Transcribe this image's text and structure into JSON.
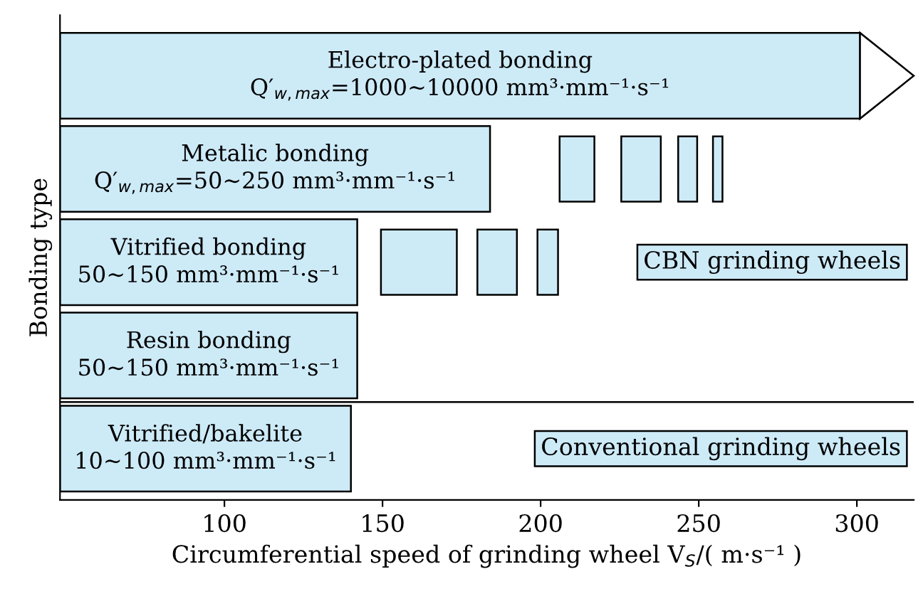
{
  "chart_data": {
    "type": "bar",
    "orientation": "horizontal",
    "ylabel": "Bonding type",
    "xlabel": "Circumferential speed of grinding wheel V$_{S}$/( m·s⁻¹ )",
    "categories": [
      null,
      null,
      null,
      null,
      null
    ],
    "xlim": [
      48,
      318
    ],
    "xticks": [
      100,
      150,
      200,
      250,
      300
    ],
    "tick_labels": "x",
    "grid": false,
    "series": [
      {
        "color": "#cdeaf7",
        "base": [
          48,
          48,
          48,
          48,
          48
        ],
        "values": [
          253,
          136,
          94,
          94,
          92
        ],
        "value_labels": [
          "Electro-plated bonding\nQ′$_{w,max}$=1000~10000 mm³·mm⁻¹·s⁻¹",
          "Metalic bonding\nQ′$_{w,max}$=50~250 mm³·mm⁻¹·s⁻¹",
          "Vitrified bonding\n50~150 mm³·mm⁻¹·s⁻¹",
          "Resin bonding\n50~150 mm³·mm⁻¹·s⁻¹",
          "Vitrified/bakelite\n10~100 mm³·mm⁻¹·s⁻¹"
        ]
      },
      {
        "color": "#cdeaf7",
        "base": [
          null,
          206,
          149.5,
          null,
          null
        ],
        "values": [
          null,
          11,
          24,
          null,
          null
        ]
      },
      {
        "color": "#cdeaf7",
        "base": [
          null,
          225.5,
          180,
          null,
          null
        ],
        "values": [
          null,
          12.5,
          12.5,
          null,
          null
        ]
      },
      {
        "color": "#cdeaf7",
        "base": [
          null,
          243.5,
          199,
          null,
          null
        ],
        "values": [
          null,
          6,
          6.5,
          null,
          null
        ]
      },
      {
        "color": "#cdeaf7",
        "base": [
          null,
          254.5,
          null,
          null,
          null
        ],
        "values": [
          null,
          3,
          null,
          null,
          null
        ]
      }
    ],
    "annotations": [
      "CBN grinding wheels",
      "Conventional grinding wheels"
    ]
  }
}
